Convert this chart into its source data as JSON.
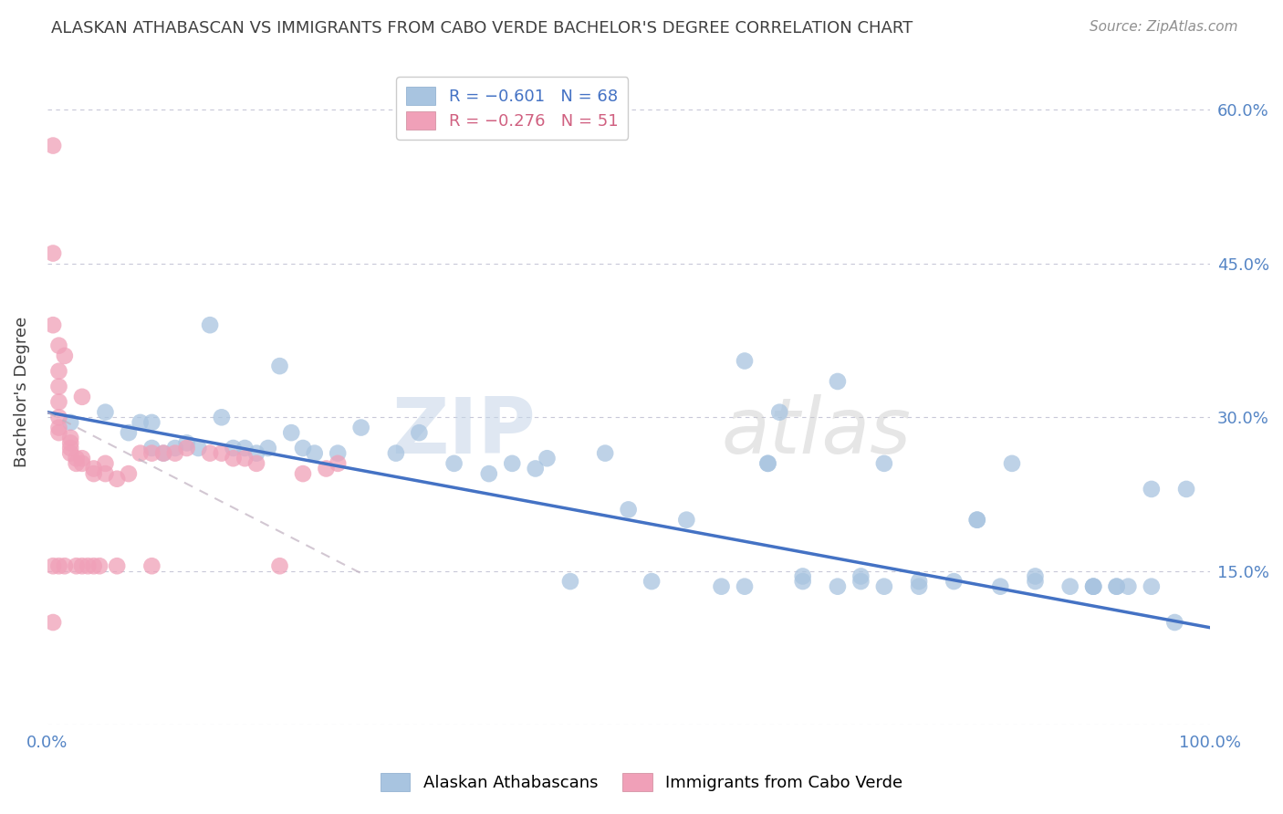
{
  "title": "ALASKAN ATHABASCAN VS IMMIGRANTS FROM CABO VERDE BACHELOR'S DEGREE CORRELATION CHART",
  "source": "Source: ZipAtlas.com",
  "ylabel": "Bachelor's Degree",
  "y_ticks": [
    0.0,
    0.15,
    0.3,
    0.45,
    0.6
  ],
  "xlim": [
    0.0,
    1.0
  ],
  "ylim": [
    0.0,
    0.65
  ],
  "blue_scatter_x": [
    0.02,
    0.05,
    0.07,
    0.08,
    0.09,
    0.09,
    0.1,
    0.11,
    0.12,
    0.13,
    0.14,
    0.15,
    0.16,
    0.17,
    0.18,
    0.19,
    0.2,
    0.21,
    0.22,
    0.23,
    0.25,
    0.27,
    0.3,
    0.32,
    0.35,
    0.38,
    0.4,
    0.42,
    0.43,
    0.45,
    0.48,
    0.5,
    0.52,
    0.55,
    0.58,
    0.6,
    0.62,
    0.63,
    0.65,
    0.68,
    0.7,
    0.72,
    0.75,
    0.78,
    0.8,
    0.82,
    0.83,
    0.85,
    0.88,
    0.9,
    0.9,
    0.92,
    0.92,
    0.95,
    0.97,
    0.62,
    0.72,
    0.85,
    0.6,
    0.65,
    0.7,
    0.75,
    0.8,
    0.9,
    0.93,
    0.95,
    0.98,
    0.68
  ],
  "blue_scatter_y": [
    0.295,
    0.305,
    0.285,
    0.295,
    0.27,
    0.295,
    0.265,
    0.27,
    0.275,
    0.27,
    0.39,
    0.3,
    0.27,
    0.27,
    0.265,
    0.27,
    0.35,
    0.285,
    0.27,
    0.265,
    0.265,
    0.29,
    0.265,
    0.285,
    0.255,
    0.245,
    0.255,
    0.25,
    0.26,
    0.14,
    0.265,
    0.21,
    0.14,
    0.2,
    0.135,
    0.355,
    0.255,
    0.305,
    0.14,
    0.135,
    0.14,
    0.135,
    0.14,
    0.14,
    0.2,
    0.135,
    0.255,
    0.14,
    0.135,
    0.135,
    0.135,
    0.135,
    0.135,
    0.23,
    0.1,
    0.255,
    0.255,
    0.145,
    0.135,
    0.145,
    0.145,
    0.135,
    0.2,
    0.135,
    0.135,
    0.135,
    0.23,
    0.335
  ],
  "pink_scatter_x": [
    0.005,
    0.005,
    0.005,
    0.005,
    0.005,
    0.01,
    0.01,
    0.01,
    0.01,
    0.01,
    0.01,
    0.01,
    0.01,
    0.015,
    0.015,
    0.02,
    0.02,
    0.02,
    0.02,
    0.025,
    0.025,
    0.025,
    0.03,
    0.03,
    0.03,
    0.035,
    0.04,
    0.04,
    0.045,
    0.05,
    0.05,
    0.06,
    0.07,
    0.08,
    0.09,
    0.1,
    0.11,
    0.12,
    0.14,
    0.15,
    0.16,
    0.17,
    0.18,
    0.2,
    0.22,
    0.24,
    0.25,
    0.03,
    0.04,
    0.06,
    0.09
  ],
  "pink_scatter_y": [
    0.565,
    0.46,
    0.39,
    0.155,
    0.1,
    0.37,
    0.345,
    0.33,
    0.315,
    0.3,
    0.29,
    0.285,
    0.155,
    0.36,
    0.155,
    0.28,
    0.275,
    0.27,
    0.265,
    0.26,
    0.255,
    0.155,
    0.26,
    0.255,
    0.155,
    0.155,
    0.25,
    0.245,
    0.155,
    0.255,
    0.245,
    0.24,
    0.245,
    0.265,
    0.265,
    0.265,
    0.265,
    0.27,
    0.265,
    0.265,
    0.26,
    0.26,
    0.255,
    0.155,
    0.245,
    0.25,
    0.255,
    0.32,
    0.155,
    0.155,
    0.155
  ],
  "blue_line_x": [
    0.0,
    1.0
  ],
  "blue_line_y": [
    0.305,
    0.095
  ],
  "pink_line_x": [
    0.0,
    0.275
  ],
  "pink_line_y": [
    0.305,
    0.145
  ],
  "watermark_zip": "ZIP",
  "watermark_atlas": "atlas",
  "title_color": "#404040",
  "source_color": "#909090",
  "scatter_blue_color": "#a8c4e0",
  "scatter_pink_color": "#f0a0b8",
  "line_blue_color": "#4472c4",
  "line_pink_color": "#c0b0c0",
  "grid_color": "#c8c8d8",
  "tick_color": "#5585c5",
  "background_color": "#ffffff"
}
